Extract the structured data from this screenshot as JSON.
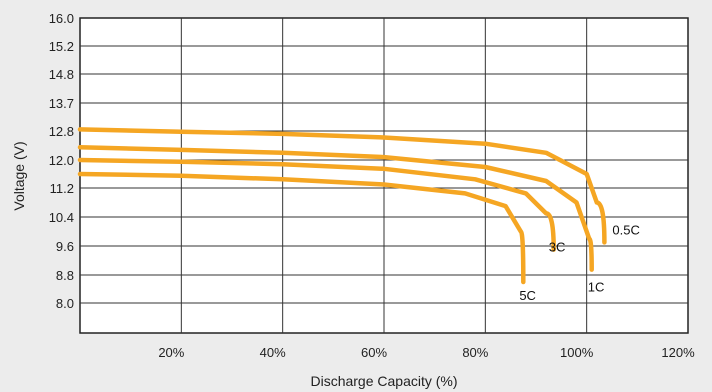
{
  "chart_data": {
    "type": "line",
    "title": "",
    "xlabel": "Discharge Capacity (%)",
    "ylabel": "Voltage (V)",
    "x_ticks": [
      "20%",
      "40%",
      "60%",
      "80%",
      "100%",
      "120%"
    ],
    "x_tick_values": [
      20,
      40,
      60,
      80,
      100,
      120
    ],
    "y_ticks": [
      "16.0",
      "15.2",
      "14.8",
      "13.7",
      "12.8",
      "12.0",
      "11.2",
      "10.4",
      "9.6",
      "8.8",
      "8.0"
    ],
    "xlim": [
      0,
      120
    ],
    "grid": true,
    "legend": "none (curves labeled directly)",
    "series": [
      {
        "name": "0.5C",
        "color": "#f5a623",
        "points": [
          [
            0,
            12.85
          ],
          [
            20,
            12.78
          ],
          [
            40,
            12.72
          ],
          [
            60,
            12.62
          ],
          [
            80,
            12.45
          ],
          [
            92,
            12.2
          ],
          [
            100,
            11.6
          ],
          [
            102,
            10.8
          ],
          [
            103.5,
            9.7
          ]
        ]
      },
      {
        "name": "1C",
        "color": "#f5a623",
        "points": [
          [
            0,
            12.35
          ],
          [
            20,
            12.28
          ],
          [
            40,
            12.2
          ],
          [
            60,
            12.08
          ],
          [
            80,
            11.8
          ],
          [
            92,
            11.4
          ],
          [
            98,
            10.8
          ],
          [
            100.5,
            9.8
          ],
          [
            101,
            8.95
          ]
        ]
      },
      {
        "name": "3C",
        "color": "#f5a623",
        "points": [
          [
            0,
            12.0
          ],
          [
            20,
            11.95
          ],
          [
            40,
            11.88
          ],
          [
            60,
            11.75
          ],
          [
            78,
            11.45
          ],
          [
            88,
            11.05
          ],
          [
            92,
            10.5
          ],
          [
            93.5,
            9.5
          ]
        ]
      },
      {
        "name": "5C",
        "color": "#f5a623",
        "points": [
          [
            0,
            11.6
          ],
          [
            20,
            11.55
          ],
          [
            40,
            11.45
          ],
          [
            60,
            11.3
          ],
          [
            76,
            11.05
          ],
          [
            84,
            10.7
          ],
          [
            87,
            10.0
          ],
          [
            87.5,
            8.6
          ]
        ]
      }
    ]
  }
}
